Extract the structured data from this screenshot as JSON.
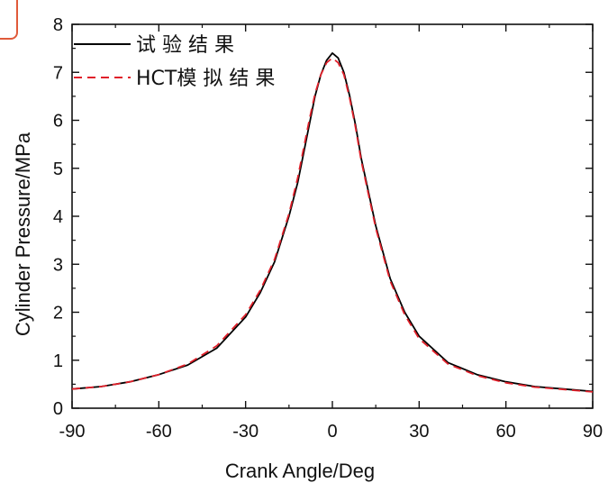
{
  "chart_data": {
    "type": "line",
    "title": "",
    "xlabel": "Crank Angle/Deg",
    "ylabel": "Cylinder Pressure/MPa",
    "xlim": [
      -90,
      90
    ],
    "ylim": [
      0,
      8
    ],
    "xticks": [
      -90,
      -60,
      -30,
      0,
      30,
      60,
      90
    ],
    "yticks": [
      0,
      1,
      2,
      3,
      4,
      5,
      6,
      7,
      8
    ],
    "xtick_labels": [
      "-90",
      "-60",
      "-30",
      "0",
      "30",
      "60",
      "90"
    ],
    "ytick_labels": [
      "0",
      "1",
      "2",
      "3",
      "4",
      "5",
      "6",
      "7",
      "8"
    ],
    "grid": false,
    "legend_position": "top-left",
    "series": [
      {
        "name": "试  验  结  果",
        "style": "solid",
        "color": "#000000",
        "x": [
          -90,
          -80,
          -70,
          -60,
          -50,
          -40,
          -30,
          -25,
          -20,
          -15,
          -12,
          -10,
          -8,
          -6,
          -4,
          -2,
          0,
          2,
          4,
          6,
          8,
          10,
          15,
          20,
          25,
          30,
          40,
          50,
          60,
          70,
          80,
          90
        ],
        "y": [
          0.4,
          0.45,
          0.55,
          0.7,
          0.9,
          1.25,
          1.9,
          2.4,
          3.05,
          4.0,
          4.7,
          5.3,
          5.9,
          6.5,
          6.95,
          7.25,
          7.4,
          7.3,
          7.0,
          6.5,
          5.9,
          5.2,
          3.8,
          2.7,
          2.0,
          1.5,
          0.95,
          0.7,
          0.55,
          0.45,
          0.4,
          0.35
        ]
      },
      {
        "name": "HCT模 拟 结 果",
        "style": "dashed",
        "color": "#e0202a",
        "x": [
          -90,
          -80,
          -70,
          -60,
          -50,
          -40,
          -30,
          -25,
          -20,
          -15,
          -12,
          -10,
          -8,
          -6,
          -4,
          -2,
          0,
          2,
          4,
          6,
          8,
          10,
          15,
          20,
          25,
          30,
          40,
          50,
          60,
          70,
          80,
          90
        ],
        "y": [
          0.4,
          0.45,
          0.55,
          0.7,
          0.92,
          1.3,
          1.95,
          2.45,
          3.1,
          4.05,
          4.8,
          5.4,
          6.0,
          6.55,
          6.95,
          7.2,
          7.3,
          7.2,
          6.95,
          6.45,
          5.85,
          5.15,
          3.75,
          2.65,
          1.95,
          1.45,
          0.92,
          0.68,
          0.53,
          0.44,
          0.39,
          0.34
        ]
      }
    ]
  },
  "decor": {
    "corner_mark_color": "#e05a3a"
  }
}
